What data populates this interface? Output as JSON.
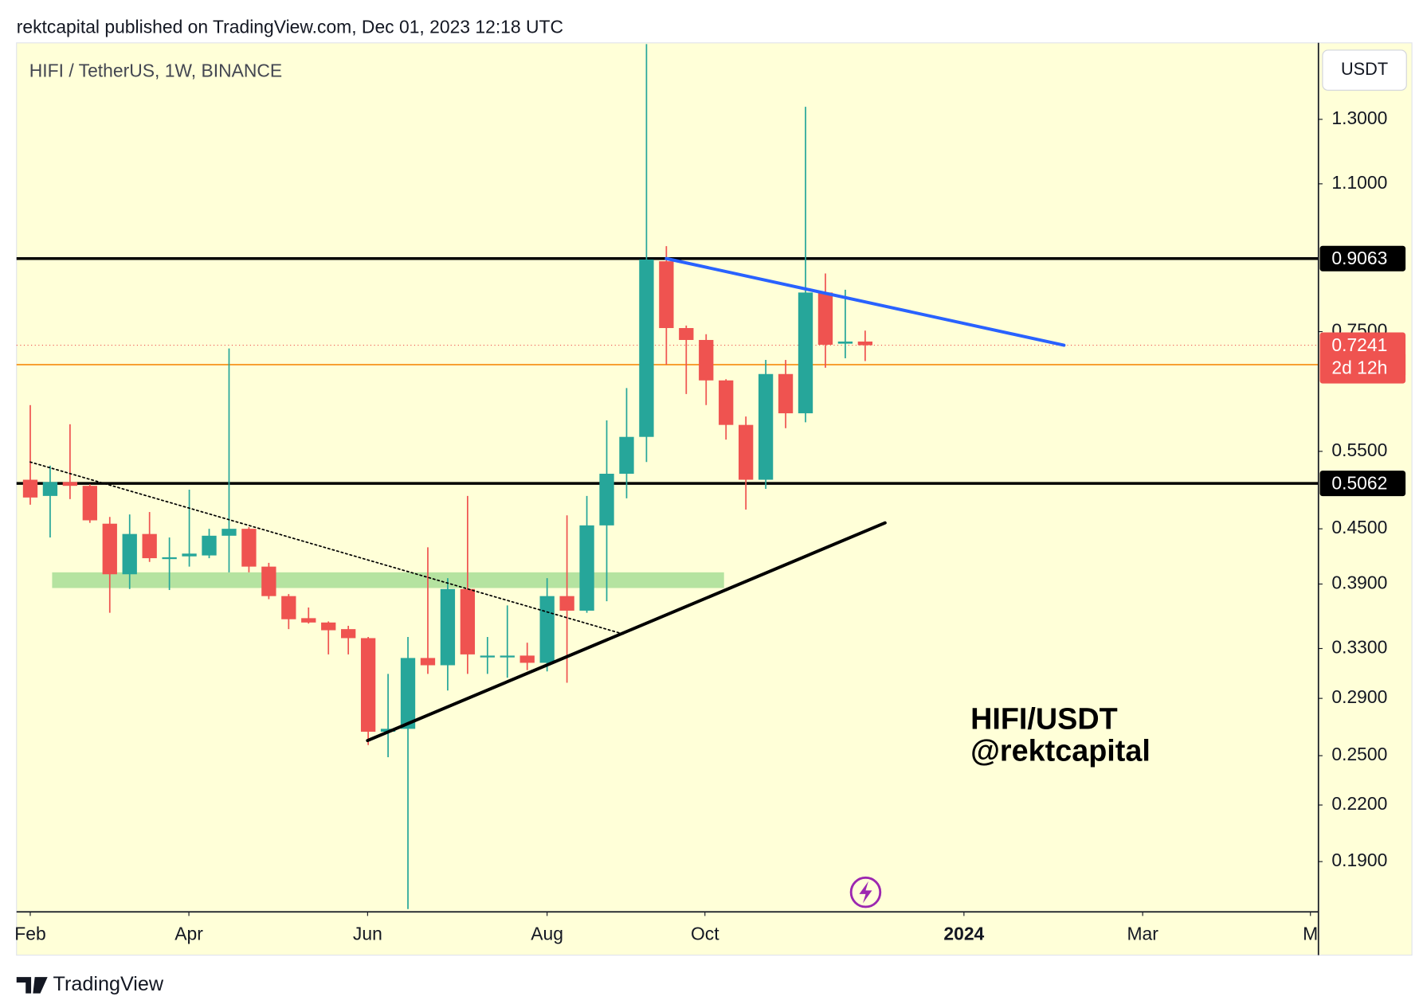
{
  "header": "rektcapital published on TradingView.com, Dec 01, 2023 12:18 UTC",
  "footer": "TradingView",
  "chart_data": {
    "type": "candlestick",
    "title": "HIFI / TetherUS, 1W, BINANCE",
    "currency": "USDT",
    "watermark": [
      "HIFI/USDT",
      "@rektcapital"
    ],
    "up_color": "#26a69a",
    "down_color": "#ef5350",
    "background": "#ffffd8",
    "log_scale": true,
    "open": [
      0.511,
      0.49,
      0.508,
      0.503,
      0.456,
      0.4,
      0.444,
      0.417,
      0.419,
      0.42,
      0.442,
      0.45,
      0.408,
      0.378,
      0.357,
      0.353,
      0.347,
      0.339,
      0.266,
      0.268,
      0.322,
      0.316,
      0.385,
      0.323,
      0.323,
      0.324,
      0.318,
      0.378,
      0.364,
      0.454,
      0.519,
      0.571,
      0.9,
      0.757,
      0.734,
      0.661,
      0.589,
      0.511,
      0.672,
      0.607,
      0.83,
      0.727,
      0.731
    ],
    "high": [
      0.62,
      0.53,
      0.59,
      0.505,
      0.464,
      0.467,
      0.47,
      0.44,
      0.498,
      0.45,
      0.718,
      0.452,
      0.412,
      0.38,
      0.367,
      0.354,
      0.35,
      0.34,
      0.309,
      0.34,
      0.429,
      0.396,
      0.49,
      0.34,
      0.369,
      0.335,
      0.396,
      0.466,
      0.49,
      0.596,
      0.648,
      1.58,
      0.936,
      0.762,
      0.745,
      0.663,
      0.602,
      0.697,
      0.697,
      1.343,
      0.872,
      0.836,
      0.752
    ],
    "low": [
      0.479,
      0.44,
      0.486,
      0.457,
      0.362,
      0.385,
      0.413,
      0.384,
      0.408,
      0.417,
      0.402,
      0.402,
      0.375,
      0.347,
      0.352,
      0.325,
      0.325,
      0.257,
      0.249,
      0.168,
      0.309,
      0.296,
      0.309,
      0.309,
      0.306,
      0.312,
      0.311,
      0.302,
      0.362,
      0.373,
      0.487,
      0.535,
      0.6885,
      0.638,
      0.62,
      0.567,
      0.473,
      0.499,
      0.584,
      0.593,
      0.683,
      0.7,
      0.695
    ],
    "close": [
      0.488,
      0.508,
      0.503,
      0.46,
      0.4,
      0.444,
      0.417,
      0.418,
      0.422,
      0.442,
      0.45,
      0.408,
      0.378,
      0.356,
      0.353,
      0.346,
      0.339,
      0.266,
      0.268,
      0.322,
      0.316,
      0.385,
      0.325,
      0.324,
      0.324,
      0.318,
      0.378,
      0.364,
      0.454,
      0.519,
      0.571,
      0.904,
      0.757,
      0.734,
      0.661,
      0.589,
      0.511,
      0.672,
      0.607,
      0.83,
      0.725,
      0.731,
      0.7241
    ],
    "xlim": [
      -0.69,
      64.78
    ],
    "xticks": [
      {
        "value": 0,
        "label": "Feb"
      },
      {
        "value": 7.98,
        "label": "Apr"
      },
      {
        "value": 16.97,
        "label": "Jun"
      },
      {
        "value": 26.0,
        "label": "Aug"
      },
      {
        "value": 33.94,
        "label": "Oct"
      },
      {
        "value": 46.97,
        "label": "2024"
      },
      {
        "value": 55.96,
        "label": "Mar"
      },
      {
        "value": 64.4,
        "label": "M"
      }
    ],
    "ylim": [
      0.167,
      1.585
    ],
    "yticks": [
      {
        "value": 1.3,
        "label": "1.3000"
      },
      {
        "value": 1.1,
        "label": "1.1000"
      },
      {
        "value": 0.75,
        "label": "0.7500"
      },
      {
        "value": 0.55,
        "label": "0.5500"
      },
      {
        "value": 0.45,
        "label": "0.4500"
      },
      {
        "value": 0.39,
        "label": "0.3900"
      },
      {
        "value": 0.33,
        "label": "0.3300"
      },
      {
        "value": 0.29,
        "label": "0.2900"
      },
      {
        "value": 0.25,
        "label": "0.2500"
      },
      {
        "value": 0.22,
        "label": "0.2200"
      },
      {
        "value": 0.19,
        "label": "0.1900"
      }
    ],
    "levels": [
      {
        "value": 0.9063,
        "color": "#000000"
      },
      {
        "value": 0.5062,
        "color": "#000000"
      },
      {
        "value": 0.6885,
        "color": "#f7931a"
      }
    ],
    "last_price": {
      "value": 0.7241,
      "countdown": "2d 12h",
      "color": "#ef5350"
    },
    "zone": {
      "x": [
        1.1,
        34.9
      ],
      "y": [
        0.386,
        0.402
      ],
      "color": "#b5e3a0"
    },
    "trendlines": [
      {
        "color": "#2962ff",
        "style": "solid",
        "points": [
          [
            32,
            0.9063
          ],
          [
            52,
            0.7241
          ]
        ]
      },
      {
        "color": "#000000",
        "style": "solid",
        "points": [
          [
            16.97,
            0.26
          ],
          [
            43,
            0.457
          ]
        ]
      },
      {
        "color": "#000000",
        "style": "dotted",
        "points": [
          [
            0,
            0.535
          ],
          [
            29.95,
            0.342
          ]
        ]
      }
    ]
  }
}
